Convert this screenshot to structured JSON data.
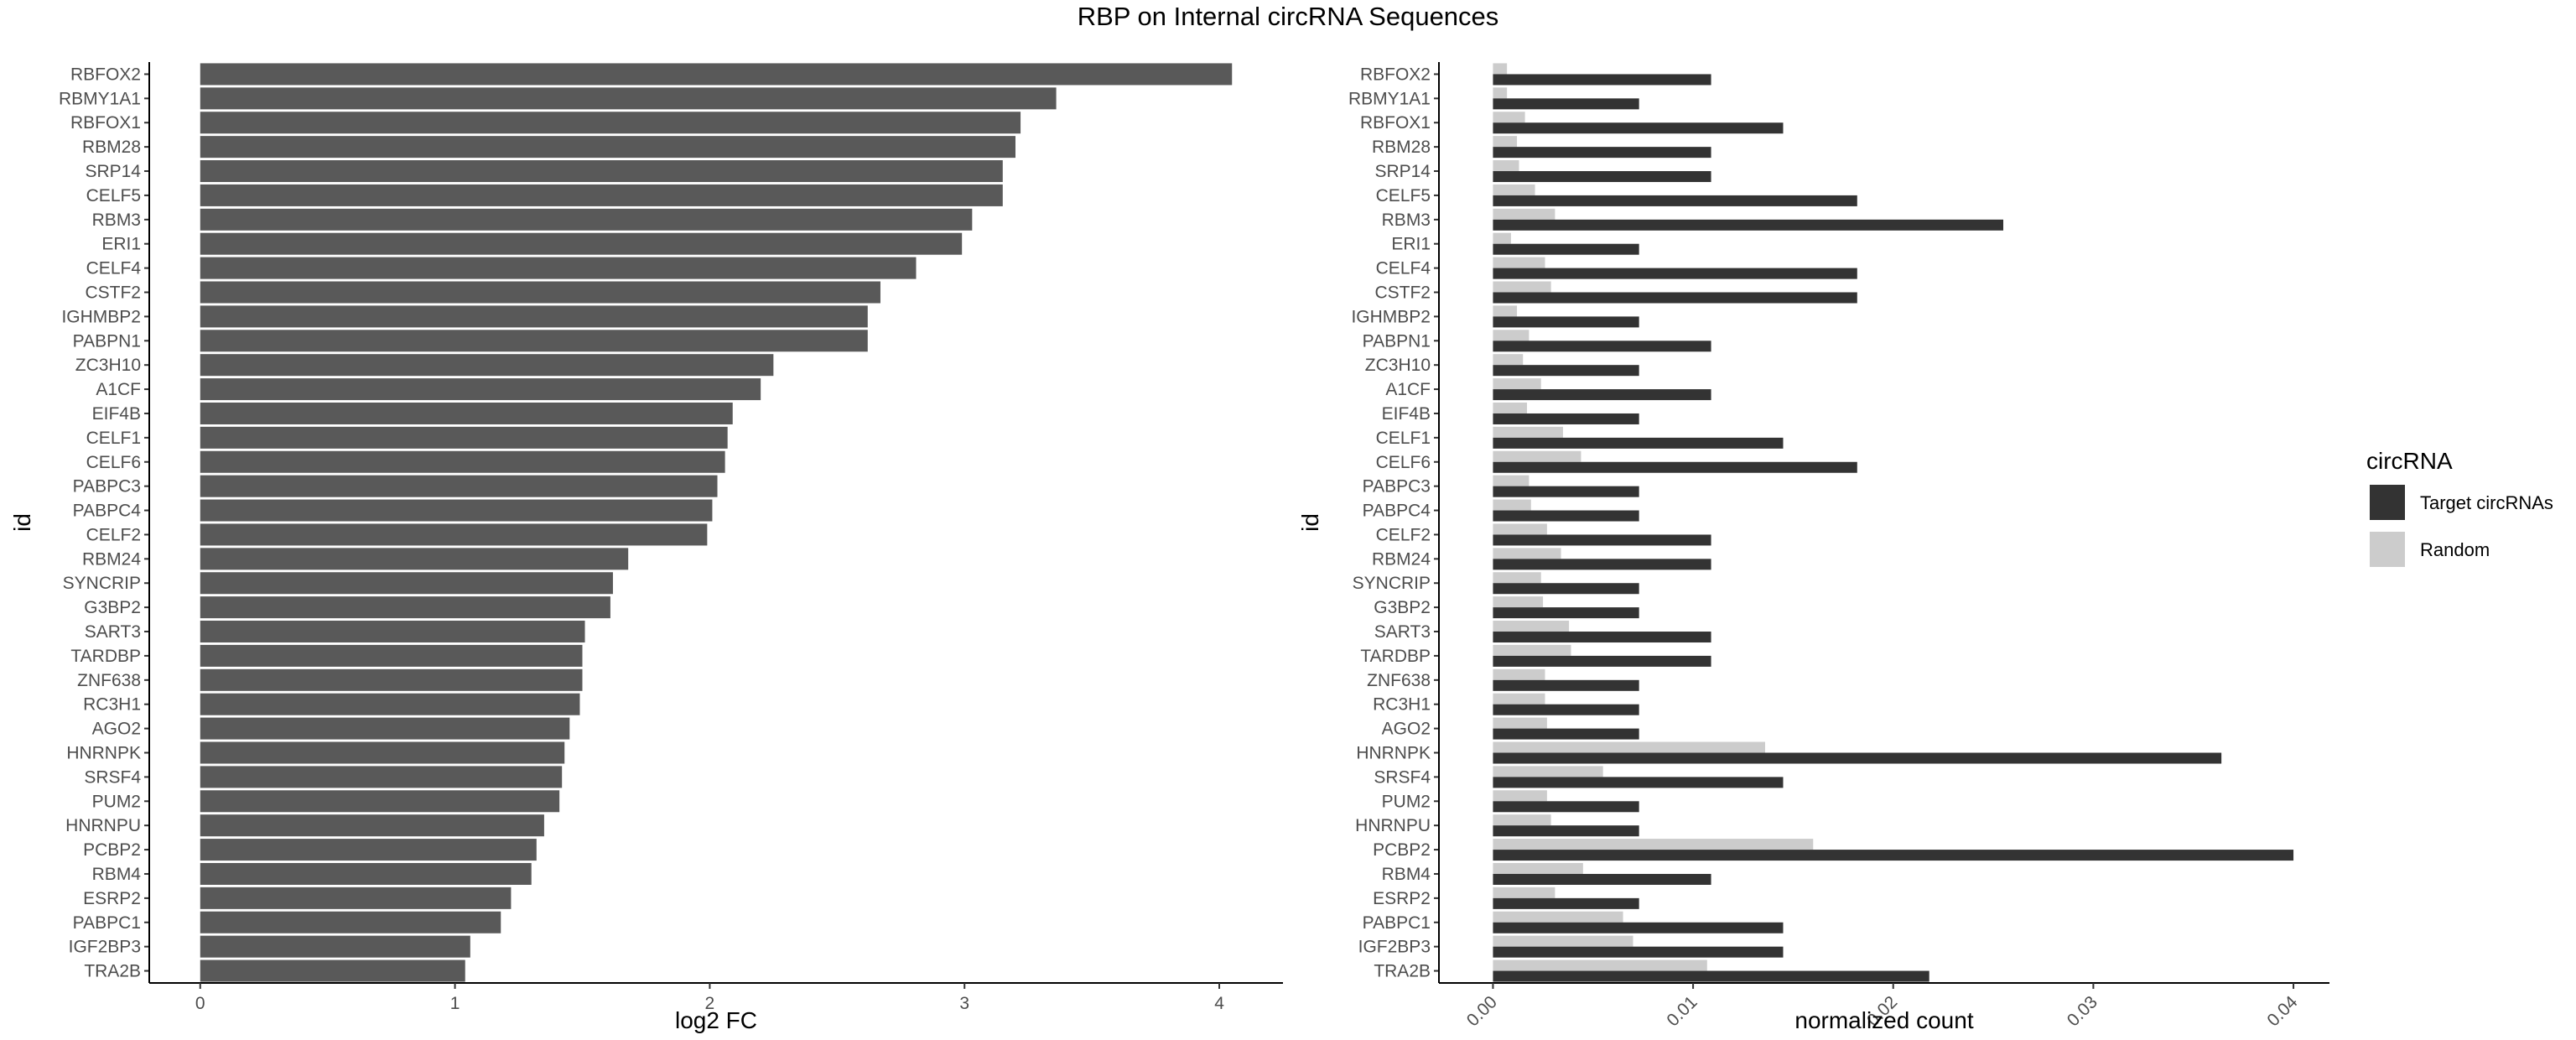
{
  "title": "RBP on Internal circRNA Sequences",
  "chart_data": [
    {
      "type": "bar",
      "orientation": "horizontal",
      "xlabel": "log2 FC",
      "ylabel": "id",
      "xlim": [
        -0.2,
        4.25
      ],
      "xticks": [
        "0",
        "1",
        "2",
        "3",
        "4"
      ],
      "grid": false,
      "color": "#595959",
      "categories": [
        "RBFOX2",
        "RBMY1A1",
        "RBFOX1",
        "RBM28",
        "SRP14",
        "CELF5",
        "RBM3",
        "ERI1",
        "CELF4",
        "CSTF2",
        "IGHMBP2",
        "PABPN1",
        "ZC3H10",
        "A1CF",
        "EIF4B",
        "CELF1",
        "CELF6",
        "PABPC3",
        "PABPC4",
        "CELF2",
        "RBM24",
        "SYNCRIP",
        "G3BP2",
        "SART3",
        "TARDBP",
        "ZNF638",
        "RC3H1",
        "AGO2",
        "HNRNPK",
        "SRSF4",
        "PUM2",
        "HNRNPU",
        "PCBP2",
        "RBM4",
        "ESRP2",
        "PABPC1",
        "IGF2BP3",
        "TRA2B"
      ],
      "values": [
        4.05,
        3.36,
        3.22,
        3.2,
        3.15,
        3.15,
        3.03,
        2.99,
        2.81,
        2.67,
        2.62,
        2.62,
        2.25,
        2.2,
        2.09,
        2.07,
        2.06,
        2.03,
        2.01,
        1.99,
        1.68,
        1.62,
        1.61,
        1.51,
        1.5,
        1.5,
        1.49,
        1.45,
        1.43,
        1.42,
        1.41,
        1.35,
        1.32,
        1.3,
        1.22,
        1.18,
        1.06,
        1.04
      ]
    },
    {
      "type": "bar",
      "orientation": "horizontal",
      "grouped": true,
      "xlabel": "normalized count",
      "ylabel": "id",
      "xlim": [
        -0.0027,
        0.0418
      ],
      "xticks": [
        "0.00",
        "0.01",
        "0.02",
        "0.03",
        "0.04"
      ],
      "grid": false,
      "legend_title": "circRNA",
      "legend_position": "right",
      "categories": [
        "RBFOX2",
        "RBMY1A1",
        "RBFOX1",
        "RBM28",
        "SRP14",
        "CELF5",
        "RBM3",
        "ERI1",
        "CELF4",
        "CSTF2",
        "IGHMBP2",
        "PABPN1",
        "ZC3H10",
        "A1CF",
        "EIF4B",
        "CELF1",
        "CELF6",
        "PABPC3",
        "PABPC4",
        "CELF2",
        "RBM24",
        "SYNCRIP",
        "G3BP2",
        "SART3",
        "TARDBP",
        "ZNF638",
        "RC3H1",
        "AGO2",
        "HNRNPK",
        "SRSF4",
        "PUM2",
        "HNRNPU",
        "PCBP2",
        "RBM4",
        "ESRP2",
        "PABPC1",
        "IGF2BP3",
        "TRA2B"
      ],
      "series": [
        {
          "name": "Target circRNAs",
          "color": "#333333",
          "values": [
            0.0109,
            0.0073,
            0.0145,
            0.0109,
            0.0109,
            0.0182,
            0.0255,
            0.0073,
            0.0182,
            0.0182,
            0.0073,
            0.0109,
            0.0073,
            0.0109,
            0.0073,
            0.0145,
            0.0182,
            0.0073,
            0.0073,
            0.0109,
            0.0109,
            0.0073,
            0.0073,
            0.0109,
            0.0109,
            0.0073,
            0.0073,
            0.0073,
            0.0364,
            0.0145,
            0.0073,
            0.0073,
            0.04,
            0.0109,
            0.0073,
            0.0145,
            0.0145,
            0.0218
          ]
        },
        {
          "name": "Random",
          "color": "#cccccc",
          "values": [
            0.0007,
            0.0007,
            0.0016,
            0.0012,
            0.0013,
            0.0021,
            0.0031,
            0.0009,
            0.0026,
            0.0029,
            0.0012,
            0.0018,
            0.0015,
            0.0024,
            0.0017,
            0.0035,
            0.0044,
            0.0018,
            0.0019,
            0.0027,
            0.0034,
            0.0024,
            0.0025,
            0.0038,
            0.0039,
            0.0026,
            0.0026,
            0.0027,
            0.0136,
            0.0055,
            0.0027,
            0.0029,
            0.016,
            0.0045,
            0.0031,
            0.0065,
            0.007,
            0.0107
          ]
        }
      ]
    }
  ]
}
